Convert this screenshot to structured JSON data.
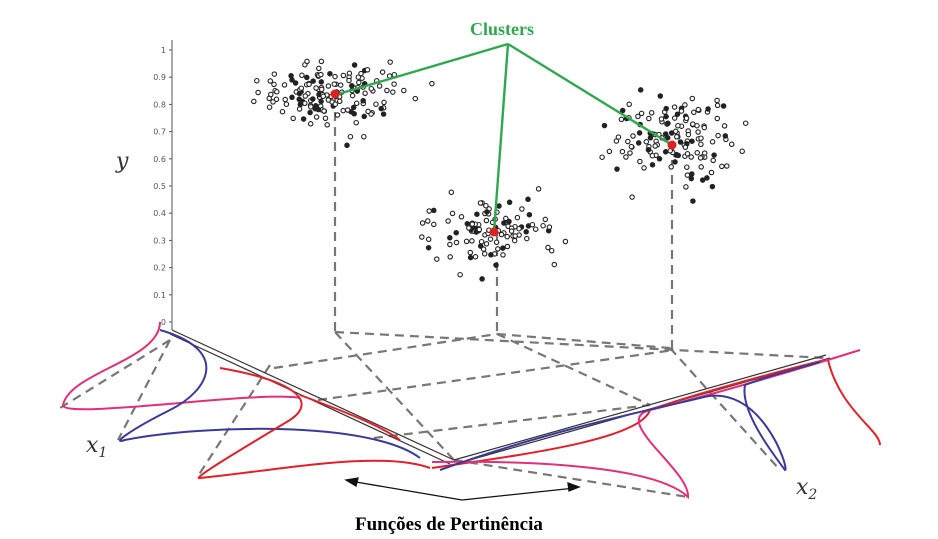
{
  "title": "Clusters",
  "caption": "Funções de Pertinência",
  "axes": {
    "y": "y",
    "x1_base": "x",
    "x1_sub": "1",
    "x2_base": "x",
    "x2_sub": "2",
    "y_ticks": [
      "1",
      "0.9",
      "0.8",
      "0.7",
      "0.6",
      "0.5",
      "0.4",
      "0.3",
      "0.2",
      "0.1",
      "0"
    ]
  },
  "colors": {
    "clusters_label": "#2fa84f",
    "connector": "#2fa84f",
    "centroid": "#dd2222",
    "point": "#222222",
    "grid": "#777777",
    "mf_red": "#e0202a",
    "mf_pink": "#e0307a",
    "mf_blue": "#3a3a9a"
  }
}
